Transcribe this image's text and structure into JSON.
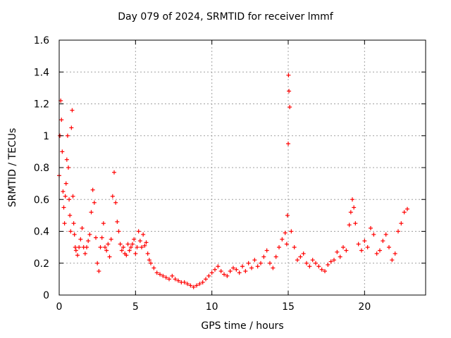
{
  "chart_data": {
    "type": "scatter",
    "title": "Day 079 of 2024, SRMTID for receiver lmmf",
    "xlabel": "GPS time / hours",
    "ylabel": "SRMTID / TECUs",
    "xlim": [
      0,
      24
    ],
    "ylim": [
      0,
      1.6
    ],
    "x_ticks": [
      0,
      5,
      10,
      15,
      20
    ],
    "x_tick_labels": [
      "0",
      "5",
      "10",
      "15",
      "20"
    ],
    "y_ticks": [
      0,
      0.2,
      0.4,
      0.6,
      0.8,
      1,
      1.2,
      1.4,
      1.6
    ],
    "y_tick_labels": [
      "0",
      "0.2",
      "0.4",
      "0.6",
      "0.8",
      "1",
      "1.2",
      "1.4",
      "1.6"
    ],
    "grid": true,
    "marker": "+",
    "marker_color": "#ff0000",
    "series": [
      {
        "name": "SRMTID",
        "x": [
          0.0,
          0.05,
          0.1,
          0.15,
          0.2,
          0.25,
          0.3,
          0.35,
          0.4,
          0.45,
          0.5,
          0.55,
          0.6,
          0.65,
          0.7,
          0.75,
          0.8,
          0.85,
          0.9,
          0.95,
          1.0,
          1.05,
          1.1,
          1.2,
          1.3,
          1.4,
          1.5,
          1.6,
          1.7,
          1.8,
          1.9,
          2.0,
          2.1,
          2.2,
          2.3,
          2.4,
          2.5,
          2.6,
          2.7,
          2.8,
          2.9,
          3.0,
          3.1,
          3.2,
          3.3,
          3.4,
          3.5,
          3.6,
          3.7,
          3.8,
          3.9,
          4.0,
          4.1,
          4.2,
          4.3,
          4.4,
          4.5,
          4.6,
          4.7,
          4.8,
          4.9,
          5.0,
          5.1,
          5.2,
          5.3,
          5.4,
          5.5,
          5.6,
          5.7,
          5.8,
          5.9,
          6.0,
          6.2,
          6.4,
          6.6,
          6.8,
          7.0,
          7.2,
          7.4,
          7.6,
          7.8,
          8.0,
          8.2,
          8.4,
          8.6,
          8.8,
          9.0,
          9.2,
          9.4,
          9.6,
          9.8,
          10.0,
          10.2,
          10.4,
          10.6,
          10.8,
          11.0,
          11.2,
          11.4,
          11.6,
          11.8,
          12.0,
          12.2,
          12.4,
          12.6,
          12.8,
          13.0,
          13.2,
          13.4,
          13.6,
          13.8,
          14.0,
          14.2,
          14.4,
          14.6,
          14.8,
          14.9,
          14.95,
          15.0,
          15.02,
          15.05,
          15.1,
          15.2,
          15.4,
          15.6,
          15.8,
          16.0,
          16.2,
          16.4,
          16.6,
          16.8,
          17.0,
          17.2,
          17.4,
          17.6,
          17.8,
          18.0,
          18.2,
          18.4,
          18.6,
          18.8,
          19.0,
          19.1,
          19.2,
          19.3,
          19.4,
          19.6,
          19.8,
          20.0,
          20.2,
          20.4,
          20.6,
          20.8,
          21.0,
          21.2,
          21.4,
          21.6,
          21.8,
          22.0,
          22.2,
          22.4,
          22.6,
          22.8
        ],
        "y": [
          0.75,
          1.0,
          1.22,
          1.1,
          0.9,
          0.65,
          0.55,
          0.45,
          0.62,
          0.7,
          0.85,
          1.0,
          0.8,
          0.6,
          0.5,
          0.4,
          1.05,
          1.16,
          0.62,
          0.45,
          0.38,
          0.3,
          0.28,
          0.25,
          0.3,
          0.35,
          0.42,
          0.3,
          0.26,
          0.3,
          0.34,
          0.38,
          0.52,
          0.66,
          0.58,
          0.36,
          0.2,
          0.15,
          0.3,
          0.36,
          0.45,
          0.3,
          0.28,
          0.32,
          0.24,
          0.35,
          0.62,
          0.77,
          0.58,
          0.46,
          0.4,
          0.32,
          0.28,
          0.3,
          0.26,
          0.25,
          0.32,
          0.28,
          0.3,
          0.32,
          0.35,
          0.26,
          0.3,
          0.4,
          0.34,
          0.3,
          0.38,
          0.31,
          0.33,
          0.26,
          0.22,
          0.2,
          0.17,
          0.14,
          0.13,
          0.12,
          0.11,
          0.1,
          0.12,
          0.1,
          0.09,
          0.08,
          0.08,
          0.07,
          0.06,
          0.05,
          0.06,
          0.07,
          0.08,
          0.1,
          0.12,
          0.14,
          0.16,
          0.18,
          0.15,
          0.13,
          0.12,
          0.15,
          0.17,
          0.16,
          0.14,
          0.18,
          0.15,
          0.2,
          0.17,
          0.22,
          0.18,
          0.2,
          0.24,
          0.28,
          0.2,
          0.17,
          0.24,
          0.3,
          0.35,
          0.39,
          0.32,
          0.5,
          0.95,
          1.38,
          1.28,
          1.18,
          0.4,
          0.3,
          0.22,
          0.24,
          0.26,
          0.2,
          0.18,
          0.22,
          0.2,
          0.18,
          0.16,
          0.15,
          0.19,
          0.21,
          0.22,
          0.27,
          0.24,
          0.3,
          0.28,
          0.44,
          0.52,
          0.6,
          0.55,
          0.45,
          0.32,
          0.28,
          0.34,
          0.3,
          0.42,
          0.38,
          0.26,
          0.28,
          0.34,
          0.38,
          0.3,
          0.22,
          0.26,
          0.4,
          0.45,
          0.52,
          0.54
        ]
      }
    ]
  }
}
